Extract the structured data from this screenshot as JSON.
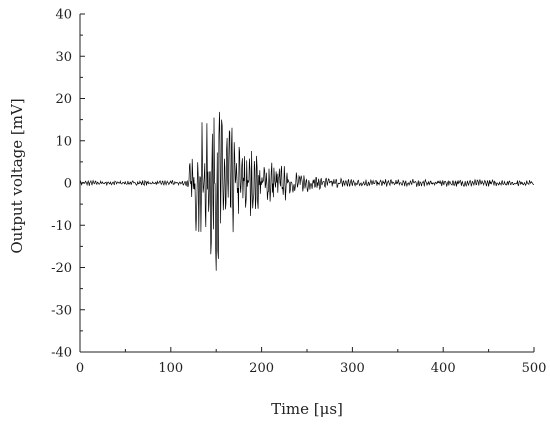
{
  "chart_data": {
    "type": "line",
    "title": "",
    "xlabel": "Time [μs]",
    "ylabel": "Output voltage [mV]",
    "xlim": [
      0,
      500
    ],
    "ylim": [
      -40,
      40
    ],
    "x_ticks": [
      0,
      100,
      200,
      300,
      400,
      500
    ],
    "y_ticks": [
      40,
      30,
      20,
      10,
      0,
      -10,
      -20,
      -30,
      -40
    ],
    "grid": false,
    "legend": "none",
    "line_color": "#000000",
    "series": [
      {
        "x": [
          0,
          10,
          20,
          30,
          40,
          50,
          60,
          70,
          80,
          90,
          100,
          110,
          118,
          122,
          126,
          130,
          134,
          138,
          142,
          146,
          150,
          152,
          154,
          158,
          162,
          166,
          170,
          175,
          180,
          185,
          190,
          195,
          200,
          205,
          210,
          215,
          220,
          225,
          230,
          235,
          240,
          245,
          250,
          255,
          260,
          270,
          280,
          290,
          300,
          320,
          340,
          360,
          380,
          400,
          420,
          440,
          460,
          480,
          500
        ],
        "y": [
          0.5,
          -0.6,
          0.4,
          -0.5,
          0.6,
          -0.4,
          0.5,
          -0.6,
          0.3,
          -0.5,
          0.6,
          -0.4,
          0.8,
          6.0,
          -7.0,
          15.5,
          -12.5,
          11.0,
          -15.0,
          20.0,
          -22.0,
          21.0,
          -18.0,
          14.0,
          -14.5,
          12.0,
          -10.0,
          9.0,
          -9.0,
          8.0,
          -7.0,
          6.0,
          -6.5,
          5.0,
          -5.5,
          4.5,
          -4.0,
          4.0,
          -3.0,
          3.0,
          -2.5,
          2.2,
          -2.0,
          1.6,
          -1.5,
          1.2,
          -1.0,
          1.1,
          -0.9,
          0.8,
          -0.8,
          0.9,
          -0.7,
          0.8,
          -0.8,
          0.7,
          -0.7,
          0.6,
          -0.6
        ]
      }
    ]
  }
}
